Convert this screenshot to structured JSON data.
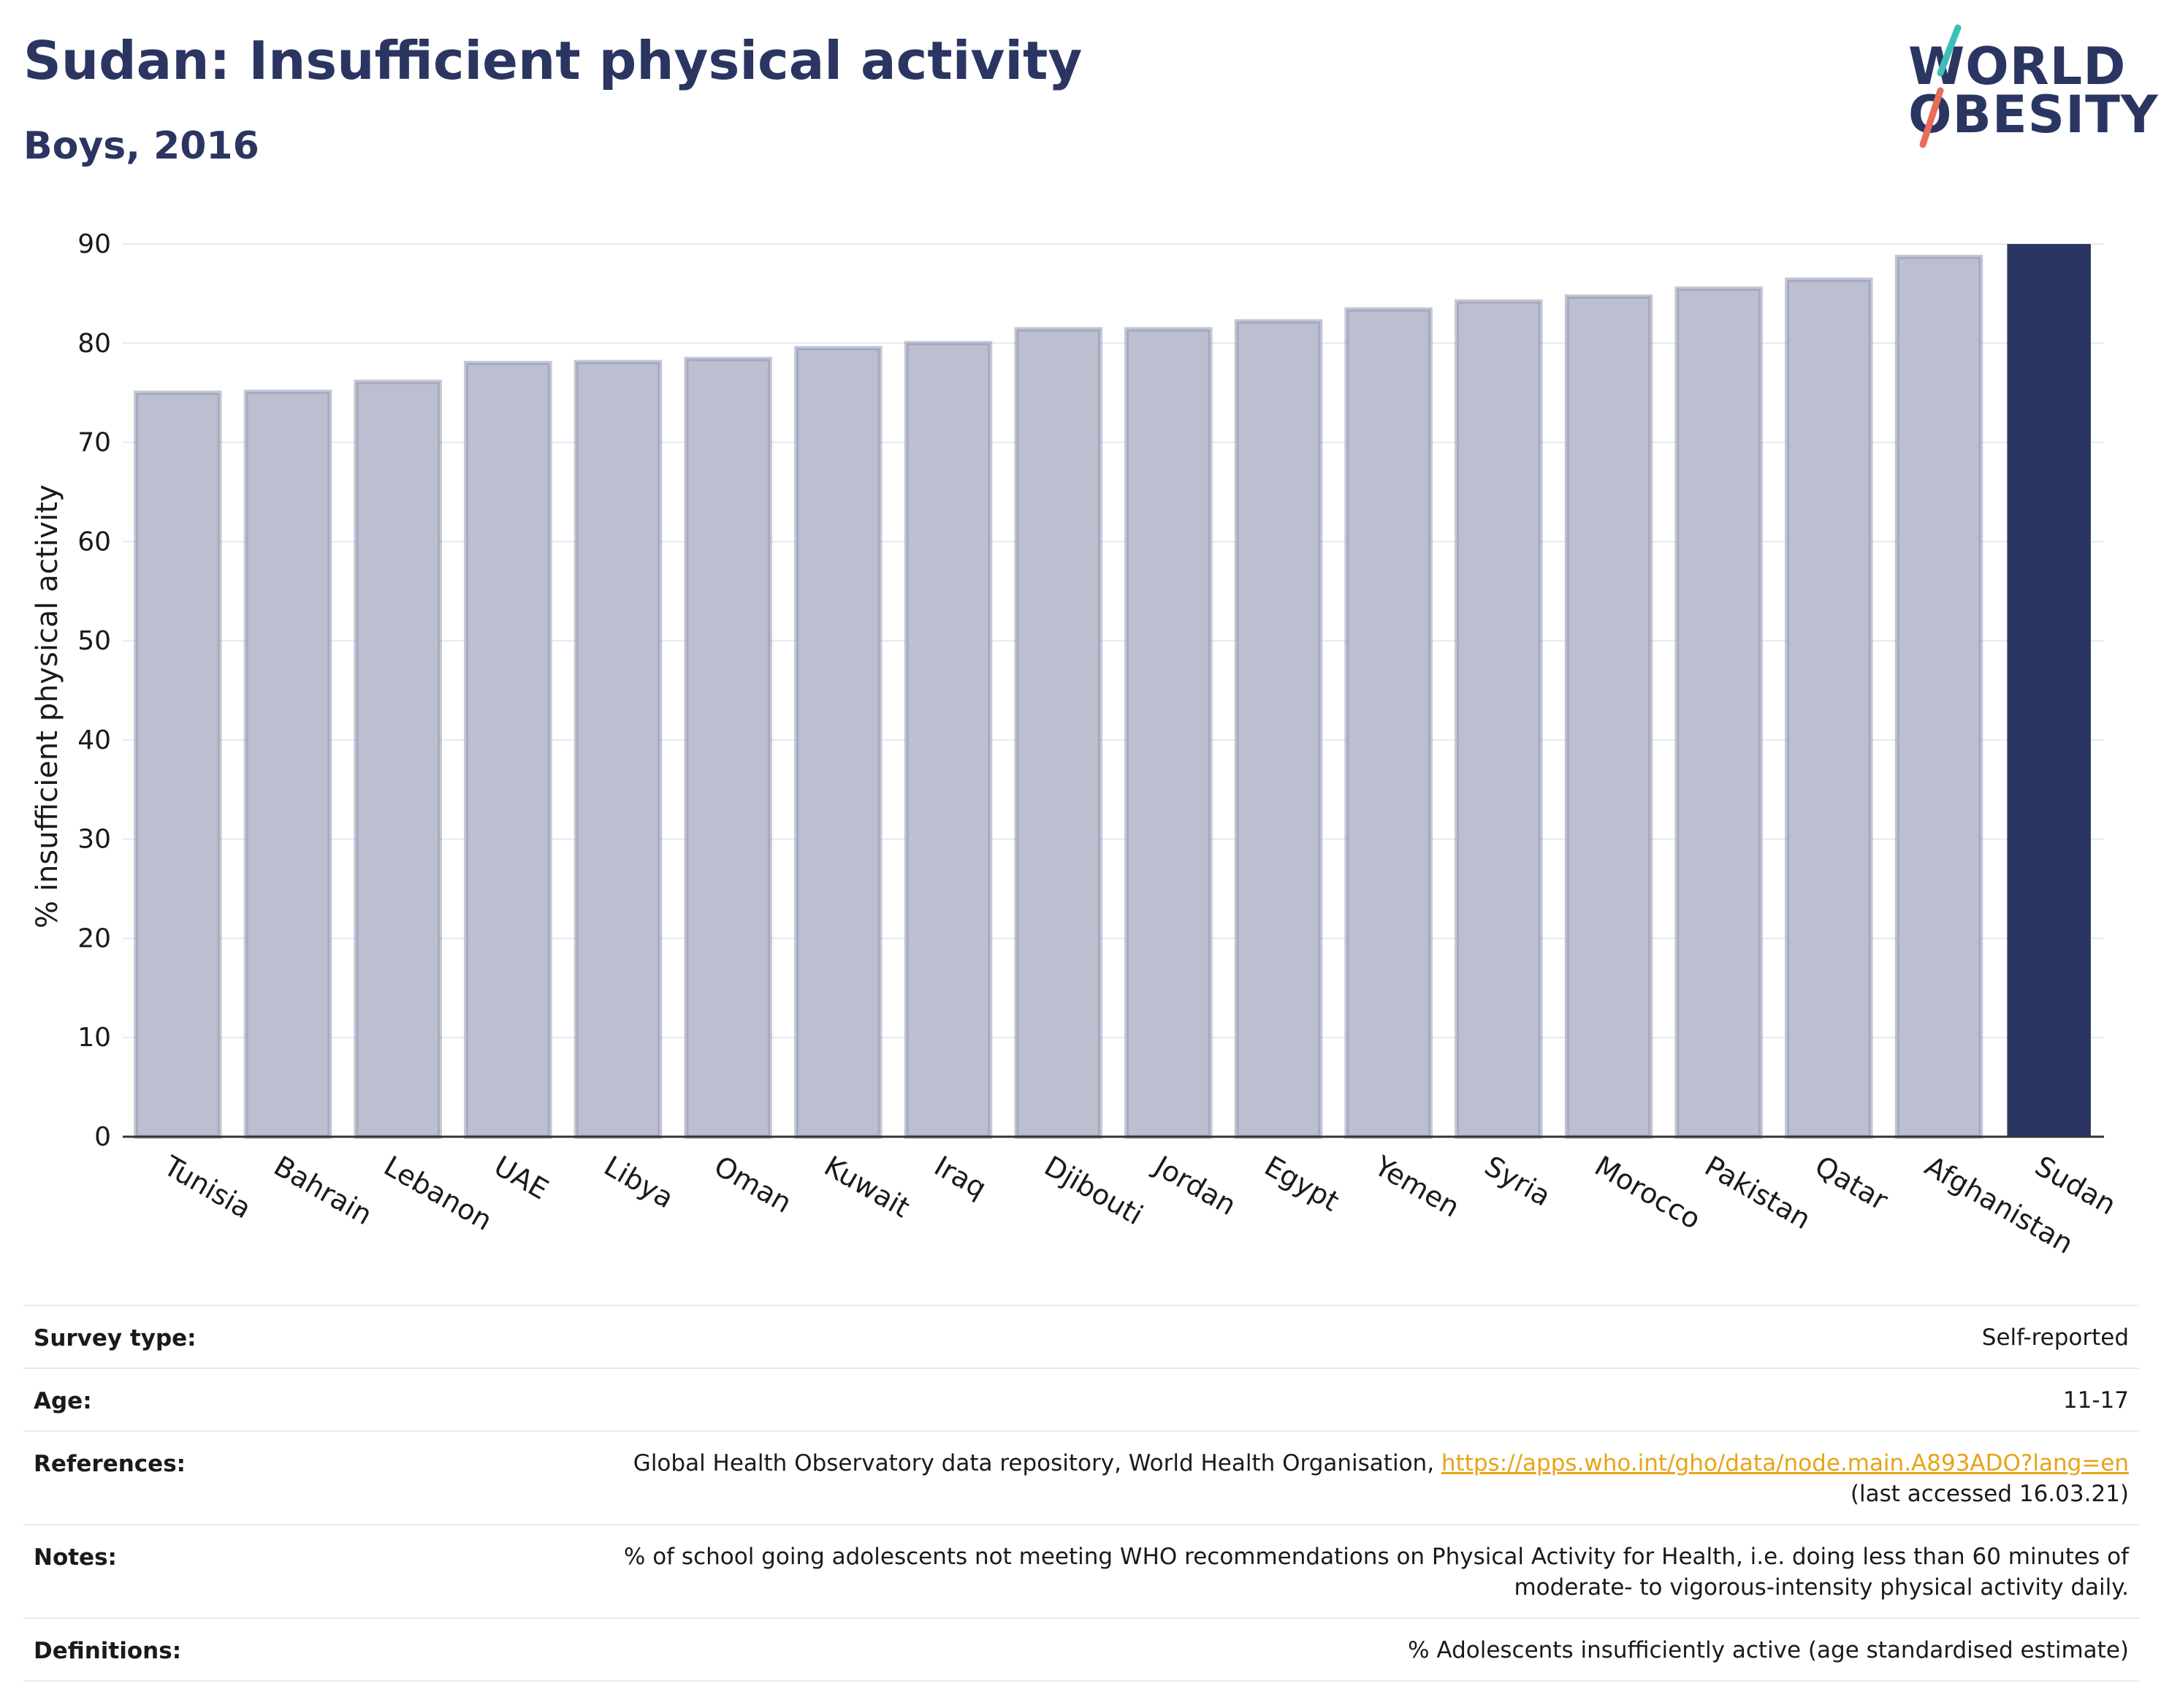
{
  "header": {
    "title": "Sudan: Insufficient physical activity",
    "subtitle": "Boys, 2016"
  },
  "logo": {
    "line1": "WORLD",
    "line2": "OBESITY",
    "colors": {
      "text": "#2b3561",
      "slash_top": "#3bbfb8",
      "slash_bottom": "#e86c5a"
    }
  },
  "chart_data": {
    "type": "bar",
    "categories": [
      "Tunisia",
      "Bahrain",
      "Lebanon",
      "UAE",
      "Libya",
      "Oman",
      "Kuwait",
      "Iraq",
      "Djibouti",
      "Jordan",
      "Egypt",
      "Yemen",
      "Syria",
      "Morocco",
      "Pakistan",
      "Qatar",
      "Afghanistan",
      "Sudan"
    ],
    "values": [
      75.0,
      75.1,
      76.1,
      78.0,
      78.1,
      78.4,
      79.5,
      80.0,
      81.4,
      81.4,
      82.2,
      83.4,
      84.2,
      84.7,
      85.5,
      86.4,
      88.7,
      90.0
    ],
    "highlight": "Sudan",
    "title": "",
    "xlabel": "",
    "ylabel": "% insufficient physical activity",
    "ylim": [
      0,
      90
    ],
    "yticks": [
      0,
      10,
      20,
      30,
      40,
      50,
      60,
      70,
      80,
      90
    ],
    "grid": true,
    "colors": {
      "bar": "#bcbfcf",
      "bar_edge": "#9499b3",
      "highlight": "#2b3561",
      "grid": "#e6e9f2",
      "axis": "#333333"
    }
  },
  "info": {
    "survey_type": {
      "label": "Survey type:",
      "value": "Self-reported"
    },
    "age": {
      "label": "Age:",
      "value": "11-17"
    },
    "references": {
      "label": "References:",
      "text": "Global Health Observatory data repository, World Health Organisation,",
      "link": "https://apps.who.int/gho/data/node.main.A893ADO?lang=en",
      "accessed": "(last accessed 16.03.21)"
    },
    "notes": {
      "label": "Notes:",
      "line1": "% of school going adolescents not meeting WHO recommendations on Physical Activity for Health, i.e. doing less than 60 minutes of",
      "line2": "moderate- to vigorous-intensity physical activity daily."
    },
    "definitions": {
      "label": "Definitions:",
      "value": "% Adolescents insufficiently active (age standardised estimate)"
    }
  }
}
